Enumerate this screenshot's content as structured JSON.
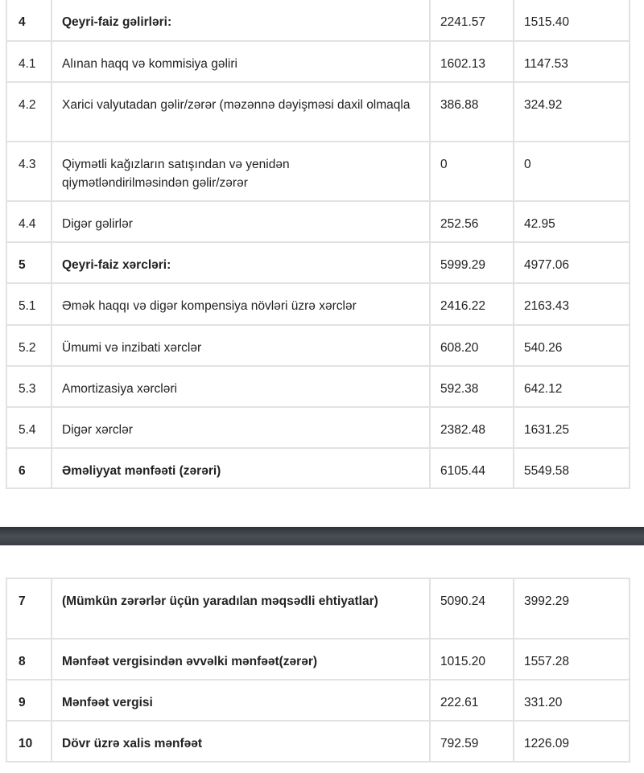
{
  "table1": [
    {
      "no": "4",
      "label": "Qeyri-faiz gəlirləri:",
      "v1": "2241.57",
      "v2": "1515.40",
      "bold": true
    },
    {
      "no": "4.1",
      "label": "Alınan haqq və kommisiya gəliri",
      "v1": "1602.13",
      "v2": "1147.53",
      "bold": false
    },
    {
      "no": "4.2",
      "label": "Xarici valyutadan gəlir/zərər (məzənnə dəyişməsi daxil olmaqla",
      "v1": "386.88",
      "v2": "324.92",
      "bold": false
    },
    {
      "no": "4.3",
      "label": "Qiymətli kağızların satışından və yenidən qiymətləndirilməsindən gəlir/zərər",
      "v1": "0",
      "v2": "0",
      "bold": false
    },
    {
      "no": "4.4",
      "label": "Digər gəlirlər",
      "v1": "252.56",
      "v2": "42.95",
      "bold": false
    },
    {
      "no": "5",
      "label": "Qeyri-faiz xərcləri:",
      "v1": "5999.29",
      "v2": "4977.06",
      "bold": true
    },
    {
      "no": "5.1",
      "label": "Əmək haqqı və digər kompensiya növləri üzrə xərclər",
      "v1": "2416.22",
      "v2": "2163.43",
      "bold": false
    },
    {
      "no": "5.2",
      "label": "Ümumi və inzibati xərclər",
      "v1": "608.20",
      "v2": "540.26",
      "bold": false
    },
    {
      "no": "5.3",
      "label": "Amortizasiya xərcləri",
      "v1": "592.38",
      "v2": "642.12",
      "bold": false
    },
    {
      "no": "5.4",
      "label": "Digər xərclər",
      "v1": "2382.48",
      "v2": "1631.25",
      "bold": false
    },
    {
      "no": "6",
      "label": "Əməliyyat mənfəəti (zərəri)",
      "v1": "6105.44",
      "v2": "5549.58",
      "bold": true
    }
  ],
  "table2": [
    {
      "no": "7",
      "label": "(Mümkün zərərlər üçün yaradılan məqsədli ehtiyatlar)",
      "v1": "5090.24",
      "v2": "3992.29",
      "bold": true
    },
    {
      "no": "8",
      "label": "Mənfəət vergisindən əvvəlki mənfəət(zərər)",
      "v1": "1015.20",
      "v2": "1557.28",
      "bold": true
    },
    {
      "no": "9",
      "label": "Mənfəət vergisi",
      "v1": "222.61",
      "v2": "331.20",
      "bold": true
    },
    {
      "no": "10",
      "label": "Dövr üzrə xalis mənfəət",
      "v1": "792.59",
      "v2": "1226.09",
      "bold": true
    }
  ]
}
